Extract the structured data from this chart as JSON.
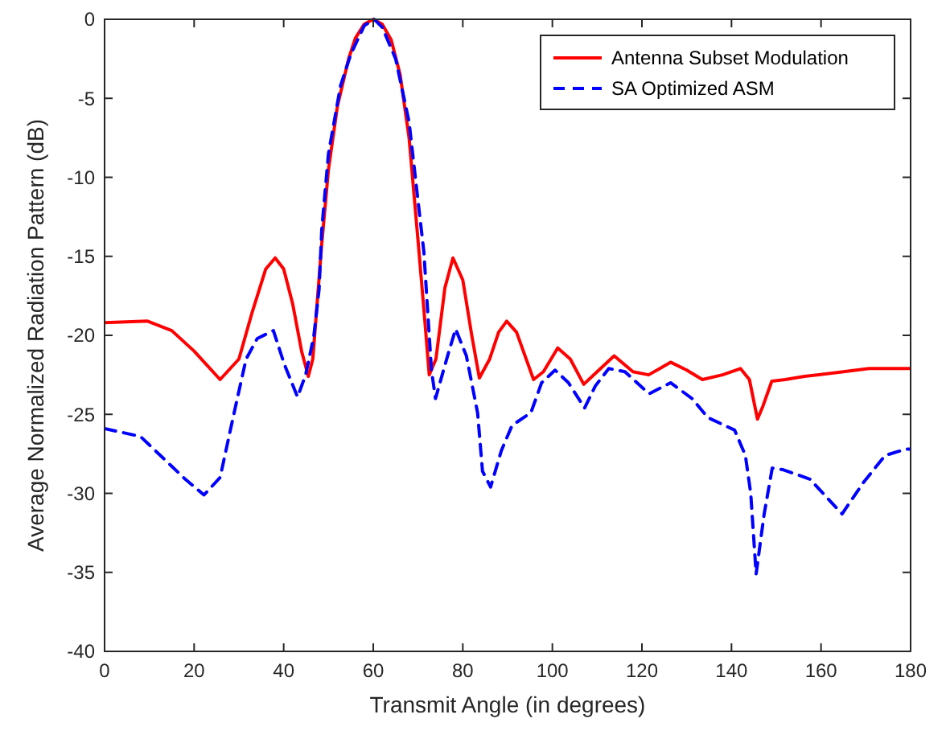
{
  "chart_data": {
    "type": "line",
    "xlabel": "Transmit Angle (in degrees)",
    "ylabel": "Average Normalized Radiation Pattern (dB)",
    "xlim": [
      0,
      180
    ],
    "xticks": [
      0,
      20,
      40,
      60,
      80,
      100,
      120,
      140,
      160,
      180
    ],
    "ylim": [
      -40,
      0
    ],
    "yticks": [
      -40,
      -35,
      -30,
      -25,
      -20,
      -15,
      -10,
      -5,
      0
    ],
    "grid": false,
    "legend": "top right",
    "marker": "none",
    "series": [
      {
        "name": "Antenna Subset Modulation",
        "color": "#ff0000",
        "line_style": "solid",
        "x": [
          0,
          9.6,
          15,
          20,
          25.8,
          30,
          33,
          36,
          38.1,
          40,
          42,
          44,
          45.5,
          46.5,
          48.5,
          50,
          52,
          54.5,
          56,
          58,
          60,
          62,
          64,
          66,
          68,
          70,
          71.5,
          72.5,
          74,
          76,
          77.8,
          80,
          82,
          83.7,
          86,
          88,
          89.8,
          92,
          95.8,
          98,
          101.2,
          104,
          107,
          110,
          113.8,
          118,
          121.5,
          124,
          126.4,
          130,
          133.5,
          138,
          142,
          144,
          145.8,
          147,
          149,
          152,
          156.3,
          165,
          170.7,
          179,
          180
        ],
        "values": [
          -19.2,
          -19.1,
          -19.7,
          -21,
          -22.8,
          -21.5,
          -18.5,
          -15.8,
          -15.1,
          -15.8,
          -18,
          -21,
          -22.6,
          -21.5,
          -14.2,
          -9.5,
          -5.5,
          -2.5,
          -1.2,
          -0.3,
          0,
          -0.3,
          -1.3,
          -3.5,
          -7.5,
          -14,
          -19,
          -22.5,
          -21.5,
          -17,
          -15.1,
          -16.5,
          -20,
          -22.7,
          -21.5,
          -19.8,
          -19.1,
          -19.8,
          -22.8,
          -22.3,
          -20.8,
          -21.5,
          -23.1,
          -22.3,
          -21.3,
          -22.3,
          -22.5,
          -22.1,
          -21.7,
          -22.2,
          -22.8,
          -22.5,
          -22.1,
          -22.8,
          -25.3,
          -24.5,
          -22.9,
          -22.8,
          -22.6,
          -22.3,
          -22.1,
          -22.1,
          -22.1
        ]
      },
      {
        "name": "SA Optimized ASM",
        "color": "#0000ff",
        "line_style": "dashed",
        "x": [
          0,
          8,
          13.2,
          18,
          22.2,
          25.8,
          28.7,
          31.6,
          34.1,
          37.7,
          40.1,
          43.1,
          44.9,
          46.7,
          47.9,
          48.5,
          50,
          52.7,
          55,
          58,
          60.2,
          62,
          65,
          68,
          70,
          71.3,
          73,
          73.9,
          76.7,
          78.4,
          80.8,
          83.3,
          84.4,
          86.2,
          88.6,
          91,
          95.2,
          97.6,
          100.6,
          103.6,
          107.2,
          109.6,
          112.6,
          116.2,
          121.6,
          126.4,
          131.2,
          134.7,
          140.7,
          143.1,
          144.3,
          145.5,
          147.3,
          149.1,
          151.5,
          157.5,
          164.7,
          169.5,
          174.3,
          179,
          180
        ],
        "values": [
          -25.9,
          -26.4,
          -27.8,
          -29.1,
          -30.1,
          -29,
          -25.2,
          -21.5,
          -20.2,
          -19.7,
          -21.8,
          -23.9,
          -22.5,
          -20.1,
          -17.1,
          -13.3,
          -8.5,
          -4.2,
          -2.2,
          -0.4,
          0,
          -0.5,
          -2.5,
          -6.5,
          -11.5,
          -14.7,
          -22.2,
          -24,
          -21.2,
          -19.6,
          -21.3,
          -24.9,
          -28.6,
          -29.6,
          -27.3,
          -25.7,
          -24.9,
          -23,
          -22.2,
          -23,
          -24.6,
          -23.2,
          -22.1,
          -22.3,
          -23.7,
          -23,
          -24,
          -25.2,
          -26,
          -27.6,
          -30,
          -35.1,
          -31.3,
          -28.4,
          -28.5,
          -29.1,
          -31.3,
          -29.3,
          -27.6,
          -27.2,
          -27.2
        ]
      }
    ]
  }
}
